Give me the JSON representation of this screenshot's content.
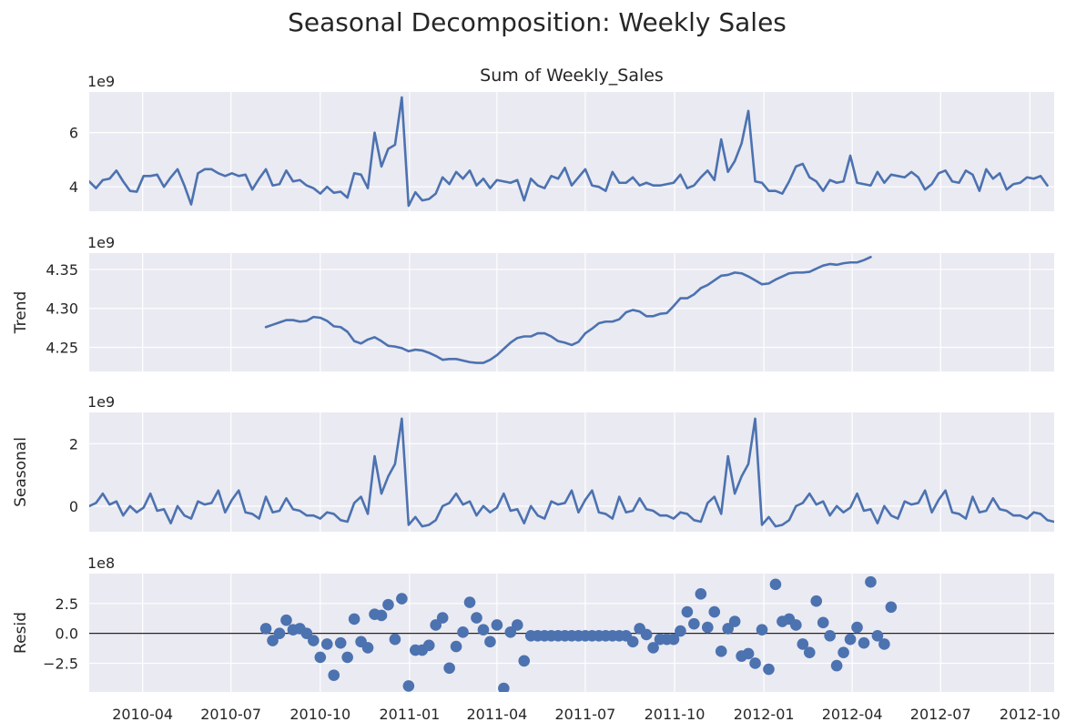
{
  "title": "Seasonal Decomposition: Weekly Sales",
  "chart_data": {
    "type": "line",
    "x_ticks": [
      "2010-04",
      "2010-07",
      "2010-10",
      "2011-01",
      "2011-04",
      "2011-07",
      "2011-10",
      "2012-01",
      "2012-04",
      "2012-07",
      "2012-10"
    ],
    "x_range": [
      "2010-02-05",
      "2012-10-26"
    ],
    "series_color": "#4c72b0",
    "panels": [
      {
        "key": "observed",
        "type": "line",
        "title": "Sum of Weekly_Sales",
        "ylabel": "",
        "offset_label": "1e9",
        "scale": 1000000000.0,
        "yticks": [
          {
            "v": 4,
            "label": "4"
          },
          {
            "v": 6,
            "label": "6"
          }
        ],
        "ylim": [
          3.1,
          7.5
        ],
        "values": [
          4.2,
          3.95,
          4.25,
          4.3,
          4.6,
          4.2,
          3.85,
          3.82,
          4.4,
          4.4,
          4.45,
          4.0,
          4.35,
          4.65,
          4.05,
          3.35,
          4.5,
          4.65,
          4.65,
          4.5,
          4.4,
          4.5,
          4.4,
          4.45,
          3.9,
          4.3,
          4.65,
          4.05,
          4.1,
          4.6,
          4.2,
          4.25,
          4.05,
          3.95,
          3.75,
          4.0,
          3.78,
          3.82,
          3.6,
          4.5,
          4.45,
          3.95,
          6.0,
          4.75,
          5.4,
          5.55,
          7.3,
          3.3,
          3.8,
          3.5,
          3.55,
          3.75,
          4.35,
          4.1,
          4.55,
          4.3,
          4.6,
          4.05,
          4.3,
          3.95,
          4.25,
          4.2,
          4.15,
          4.25,
          3.5,
          4.3,
          4.05,
          3.95,
          4.4,
          4.3,
          4.7,
          4.05,
          4.35,
          4.65,
          4.05,
          4.0,
          3.85,
          4.55,
          4.15,
          4.15,
          4.35,
          4.05,
          4.15,
          4.05,
          4.05,
          4.1,
          4.15,
          4.45,
          3.95,
          4.05,
          4.35,
          4.6,
          4.25,
          5.75,
          4.55,
          4.95,
          5.6,
          6.8,
          4.2,
          4.15,
          3.85,
          3.85,
          3.75,
          4.2,
          4.75,
          4.85,
          4.35,
          4.2,
          3.85,
          4.25,
          4.15,
          4.2,
          5.15,
          4.15,
          4.1,
          4.05,
          4.55,
          4.15,
          4.45,
          4.4,
          4.35,
          4.55,
          4.35,
          3.9,
          4.1,
          4.5,
          4.6,
          4.2,
          4.15,
          4.6,
          4.45,
          3.85,
          4.65,
          4.3,
          4.5,
          3.9,
          4.1,
          4.15,
          4.35,
          4.3,
          4.4,
          4.05
        ]
      },
      {
        "key": "trend",
        "type": "line",
        "title": "",
        "ylabel": "Trend",
        "offset_label": "1e9",
        "scale": 1000000000.0,
        "yticks": [
          {
            "v": 4.25,
            "label": "4.25"
          },
          {
            "v": 4.3,
            "label": "4.30"
          },
          {
            "v": 4.35,
            "label": "4.35"
          }
        ],
        "ylim": [
          4.219,
          4.371
        ],
        "start_index": 26,
        "values": [
          4.276,
          4.279,
          4.282,
          4.285,
          4.285,
          4.283,
          4.284,
          4.289,
          4.288,
          4.284,
          4.277,
          4.276,
          4.27,
          4.258,
          4.255,
          4.26,
          4.263,
          4.258,
          4.252,
          4.251,
          4.249,
          4.245,
          4.247,
          4.246,
          4.243,
          4.239,
          4.234,
          4.235,
          4.235,
          4.233,
          4.231,
          4.23,
          4.23,
          4.234,
          4.24,
          4.248,
          4.256,
          4.262,
          4.264,
          4.264,
          4.268,
          4.268,
          4.264,
          4.258,
          4.256,
          4.253,
          4.257,
          4.268,
          4.274,
          4.281,
          4.283,
          4.283,
          4.286,
          4.295,
          4.298,
          4.296,
          4.29,
          4.29,
          4.293,
          4.294,
          4.303,
          4.313,
          4.313,
          4.318,
          4.326,
          4.33,
          4.336,
          4.342,
          4.343,
          4.346,
          4.345,
          4.341,
          4.336,
          4.331,
          4.332,
          4.337,
          4.341,
          4.345,
          4.346,
          4.346,
          4.347,
          4.351,
          4.355,
          4.357,
          4.356,
          4.358,
          4.359,
          4.359,
          4.362,
          4.366
        ]
      },
      {
        "key": "seasonal",
        "type": "line",
        "title": "",
        "ylabel": "Seasonal",
        "offset_label": "1e9",
        "scale": 1000000000.0,
        "yticks": [
          {
            "v": 0,
            "label": "0"
          },
          {
            "v": 2,
            "label": "2"
          }
        ],
        "ylim": [
          -0.82,
          3.0
        ],
        "period": 52,
        "values": [
          0.0,
          0.1,
          0.4,
          0.05,
          0.15,
          -0.3,
          0.0,
          -0.2,
          -0.05,
          0.4,
          -0.15,
          -0.1,
          -0.55,
          0.0,
          -0.3,
          -0.4,
          0.15,
          0.05,
          0.1,
          0.5,
          -0.2,
          0.2,
          0.5,
          -0.2,
          -0.25,
          -0.4,
          0.3,
          -0.2,
          -0.15,
          0.25,
          -0.1,
          -0.15,
          -0.3,
          -0.3,
          -0.4,
          -0.2,
          -0.25,
          -0.45,
          -0.5,
          0.1,
          0.3,
          -0.25,
          1.6,
          0.4,
          0.95,
          1.35,
          2.8,
          -0.6,
          -0.35,
          -0.65,
          -0.6,
          -0.45
        ]
      },
      {
        "key": "resid",
        "type": "scatter",
        "title": "",
        "ylabel": "Resid",
        "offset_label": "1e8",
        "scale": 100000000.0,
        "yticks": [
          {
            "v": -2.5,
            "label": "−2.5"
          },
          {
            "v": 0,
            "label": "0.0"
          },
          {
            "v": 2.5,
            "label": "2.5"
          }
        ],
        "ylim": [
          -4.9,
          5.0
        ],
        "zero_line": true,
        "start_index": 26,
        "values": [
          0.4,
          -0.6,
          0.0,
          1.1,
          0.3,
          0.4,
          0.0,
          -0.6,
          -2.0,
          -0.9,
          -3.5,
          -0.8,
          -2.0,
          1.2,
          -0.7,
          -1.2,
          1.6,
          1.5,
          2.4,
          -0.5,
          2.9,
          -4.4,
          -1.4,
          -1.4,
          -1.0,
          0.7,
          1.3,
          -2.9,
          -1.1,
          0.1,
          2.6,
          1.3,
          0.3,
          -0.7,
          0.7,
          -4.6,
          0.1,
          0.7,
          -2.3,
          -0.2,
          -0.2,
          -0.2,
          -0.2,
          -0.2,
          -0.2,
          -0.2,
          -0.2,
          -0.2,
          -0.2,
          -0.2,
          -0.2,
          -0.2,
          -0.2,
          -0.2,
          -0.7,
          0.4,
          -0.1,
          -1.2,
          -0.5,
          -0.5,
          -0.5,
          0.2,
          1.8,
          0.8,
          3.3,
          0.5,
          1.8,
          -1.5,
          0.4,
          1.0,
          -1.9,
          -1.7,
          -2.5,
          0.3,
          -3.0,
          4.1,
          1.0,
          1.2,
          0.7,
          -0.9,
          -1.6,
          2.7,
          0.9,
          -0.2,
          -2.7,
          -1.6,
          -0.5,
          0.5,
          -0.8,
          4.3,
          -0.2,
          -0.9,
          2.2
        ]
      }
    ]
  }
}
